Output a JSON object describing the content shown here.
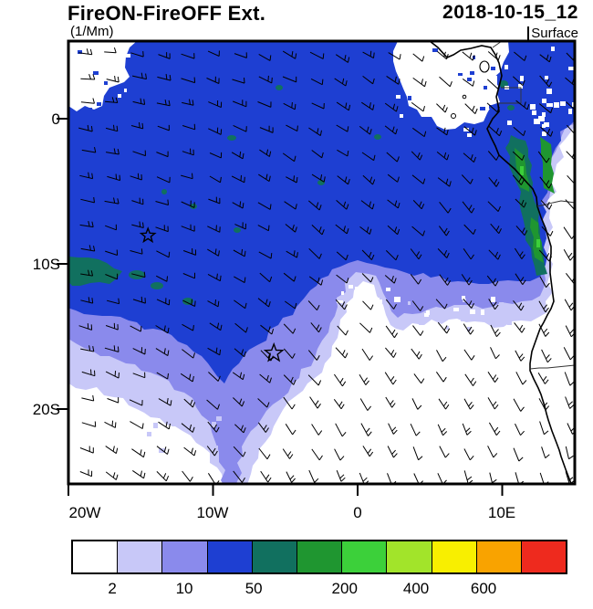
{
  "header": {
    "title": "FireON-FireOFF Ext.",
    "datetime": "2018-10-15_12",
    "units": "(1/Mm)",
    "level": "Surface"
  },
  "chart_data": {
    "type": "heatmap",
    "title": "FireON-FireOFF Ext.",
    "datetime": "2018-10-15_12",
    "units": "1/Mm",
    "level": "Surface",
    "projection": "cylindrical lat-lon map, South-East Atlantic and West-Central Africa",
    "x_axis": {
      "tick_labels": [
        "20W",
        "10W",
        "0",
        "10E"
      ],
      "tick_lons_deg": [
        -20,
        -10,
        0,
        10
      ],
      "range_deg": [
        -20,
        15
      ]
    },
    "y_axis": {
      "tick_labels": [
        "0",
        "10S",
        "20S"
      ],
      "tick_lats_deg": [
        0,
        -10,
        -20
      ],
      "range_deg": [
        5.3,
        -25.2
      ]
    },
    "colorbar": {
      "tick_labels": [
        "2",
        "10",
        "50",
        "200",
        "400",
        "600"
      ],
      "tick_positions": [
        0.083,
        0.228,
        0.368,
        0.551,
        0.695,
        0.831
      ],
      "colors": [
        "#ffffff",
        "#c8c8f8",
        "#8a8aec",
        "#1e3fd2",
        "#11705f",
        "#1f9630",
        "#3cd03a",
        "#a2e42a",
        "#f8ef00",
        "#f9a300",
        "#ee2a1e"
      ]
    },
    "field_regions": [
      {
        "region": "smoke plume covering most of the basin north of ~12S",
        "value_range": "10-25 1/Mm"
      },
      {
        "region": "narrow band hugging the Gabon-Congo-Angola coast",
        "value_range": "25-200 1/Mm"
      },
      {
        "region": "south-east quadrant and south-west corner",
        "value_range": "below 2 1/Mm (clear)"
      },
      {
        "region": "transition bands rimming the plume edge and mid-map clear slot",
        "value_range": "2-10 1/Mm"
      }
    ],
    "markers": [
      {
        "symbol": "star",
        "lon_deg": -14.5,
        "lat_deg": -8.1
      },
      {
        "symbol": "star",
        "lon_deg": -5.8,
        "lat_deg": -16.2
      }
    ],
    "wind": {
      "symbol": "barbs",
      "pattern": "south-easterly trade-wind flow over the basin turning southerly along the Angola/Namibia coast"
    },
    "map_overlays": [
      "African coastline",
      "country borders",
      "islands (Bioko, Principe, Sao Tome)"
    ]
  }
}
